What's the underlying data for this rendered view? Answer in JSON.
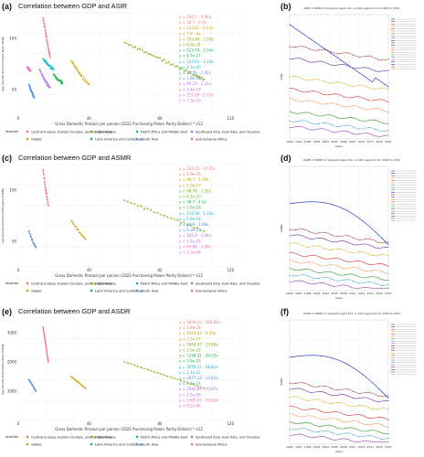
{
  "colors": {
    "c1": "#f06f6f",
    "c2": "#c9a400",
    "c3": "#7cae00",
    "c4": "#1ab34a",
    "c5": "#00b8c4",
    "c6": "#4a8fe0",
    "c7": "#b06ae8",
    "c8": "#f060c0"
  },
  "legend": {
    "title": "location",
    "items": [
      "Central Europe, Eastern Europe, and Central Asia",
      "High-income",
      "North Africa and Middle East",
      "Southeast Asia, East Asia, and Oceania",
      "Global",
      "Latin America and Caribbean",
      "South Asia",
      "Sub-Saharan Africa"
    ]
  },
  "x_axis_label": "Gross Domestic Product per person (2022 Purchasing Power Parity Dollars) * e12",
  "panels": [
    {
      "label": "(a)",
      "title": "Correlation between GDP and ASIR",
      "ylabel": "Age-Standardized Incidence Rate (ASIR)",
      "yticks": [
        "100",
        "50"
      ],
      "xticks": [
        "0",
        "40",
        "80",
        "120"
      ],
      "equations": [
        "y = 350.7 - 3.06x",
        "y = 16.7 - 0.7x",
        "y = 113.81 - 6.23x",
        "y = 7.8 - 0x",
        "y = 103.49 - 3.59x",
        "y = 8.9e-24",
        "y = 123.79 - 2.54x",
        "y = 9.7e-27",
        "y = 123.42 - 1.14x",
        "y = 2.1e-45",
        "y = 75.59 - 1.32x",
        "y = 1.6e-39",
        "y = 93.23 - 1.21x",
        "y = 3.4e-19",
        "y = 113.09 - 5.37x",
        "y = 7.3e-16"
      ]
    },
    {
      "label": "(c)",
      "title": "Correlation between GDP and ASMR",
      "ylabel": "Age-Standardized Mortality Rate (ASMR)",
      "yticks": [
        "100",
        "50"
      ],
      "xticks": [
        "0",
        "40",
        "80",
        "120"
      ],
      "equations": [
        "y = 233.15 - 17.35x",
        "y = 2.9e-25",
        "y = 98.7 - 4.39x",
        "y = 5.3e-27",
        "y = 98.76 - 1.55x",
        "y = 8.2e-20",
        "y = 98.7 - 4.5x",
        "y = 2.5e-18",
        "y = 110.56 - 1.25x",
        "y = 5.6e-18",
        "y = 94.9 - 2.08x",
        "y = 6.3e-23",
        "y = 101.9 - 1.44x",
        "y = 5.1e-21",
        "y = 67.04 - 1.28x",
        "y = 3.3e-08"
      ]
    },
    {
      "label": "(e)",
      "title": "Correlation between GDP and ASDR",
      "ylabel": "Age-Standardized DALYs Rate (ASDR)",
      "yticks": [
        "3000",
        "2000",
        "1000"
      ],
      "xticks": [
        "0",
        "40",
        "80",
        "120"
      ],
      "equations": [
        "y = 5659.23 - 262.61x",
        "y = 2.6e-29",
        "y = 1944.82 - 8.03x",
        "y = 1.3e-27",
        "y = 1604.07 - 33.98x",
        "y = 1.0e-23",
        "y = 1248.31 - 34.22x",
        "y = 3.9e-20",
        "y = 2659.11 - 58.41x",
        "y = 1.4e-22",
        "y = 2677.23 - 14.65x",
        "y = 1.5e-21",
        "y = 2040.85 - 20.87x",
        "y = 1.2e-08",
        "y = 1305.57 - 10.13x",
        "y = 6.2e-09"
      ]
    }
  ],
  "right_panels": [
    {
      "label": "(b)",
      "title": "ASIR of GERD of Subjects Aged 20+ in 204 regions from 1990 to 2021",
      "ylabel": "ASIR",
      "xlabel": "Years"
    },
    {
      "label": "(d)",
      "title": "ASMR of GERD of Subjects Aged 20+ in 204 regions from 1990 to 2021",
      "ylabel": "ASMR",
      "xlabel": "Years"
    },
    {
      "label": "(f)",
      "title": "ASDR of GERD of Subjects Aged 20+ in 204 regions from 1990 to 2021",
      "ylabel": "ASDR",
      "xlabel": "Years"
    }
  ],
  "year_ticks": [
    "1990",
    "1993",
    "1996",
    "1999",
    "2002",
    "2005",
    "2008",
    "2011",
    "2014",
    "2017",
    "2020",
    "2021"
  ],
  "chart_data": [
    {
      "type": "scatter",
      "title": "Correlation between GDP and ASIR",
      "xlabel": "Gross Domestic Product per person (2022 Purchasing Power Parity Dollars) * e12",
      "ylabel": "Age-Standardized Incidence Rate (ASIR)",
      "xlim": [
        0,
        125
      ],
      "ylim": [
        25,
        125
      ],
      "series": [
        {
          "name": "Central Europe, Eastern Europe, and Central Asia",
          "x": [
            14,
            15,
            16,
            17,
            18
          ],
          "y": [
            120,
            110,
            100,
            90,
            82
          ]
        },
        {
          "name": "High-income",
          "x": [
            60,
            70,
            80,
            90,
            100,
            105
          ],
          "y": [
            96,
            88,
            80,
            72,
            64,
            60
          ]
        },
        {
          "name": "North Africa and Middle East",
          "x": [
            14,
            16,
            18,
            20
          ],
          "y": [
            80,
            76,
            72,
            70
          ]
        },
        {
          "name": "Southeast Asia, East Asia, and Oceania",
          "x": [
            12,
            14,
            16,
            18
          ],
          "y": [
            70,
            62,
            56,
            52
          ]
        },
        {
          "name": "Global",
          "x": [
            30,
            33,
            36,
            40
          ],
          "y": [
            78,
            70,
            62,
            55
          ]
        },
        {
          "name": "Latin America and Caribbean",
          "x": [
            20,
            22,
            24,
            25
          ],
          "y": [
            65,
            60,
            58,
            56
          ]
        },
        {
          "name": "South Asia",
          "x": [
            6,
            7,
            8,
            9
          ],
          "y": [
            55,
            50,
            46,
            42
          ]
        },
        {
          "name": "Sub-Saharan Africa",
          "x": [
            5,
            6,
            7
          ],
          "y": [
            72,
            70,
            68
          ]
        }
      ]
    },
    {
      "type": "scatter",
      "title": "Correlation between GDP and ASMR",
      "xlabel": "Gross Domestic Product per person (2022 Purchasing Power Parity Dollars) * e12",
      "ylabel": "Age-Standardized Mortality Rate (ASMR)",
      "xlim": [
        0,
        125
      ],
      "ylim": [
        25,
        125
      ],
      "series": [
        {
          "name": "Central Europe, Eastern Europe, and Central Asia",
          "x": [
            14,
            15,
            16,
            17
          ],
          "y": [
            120,
            105,
            95,
            85
          ]
        },
        {
          "name": "High-income",
          "x": [
            60,
            75,
            90,
            105
          ],
          "y": [
            90,
            80,
            70,
            60
          ]
        },
        {
          "name": "Global",
          "x": [
            30,
            34,
            38
          ],
          "y": [
            70,
            60,
            52
          ]
        },
        {
          "name": "South Asia",
          "x": [
            6,
            8,
            10
          ],
          "y": [
            60,
            50,
            44
          ]
        }
      ]
    },
    {
      "type": "scatter",
      "title": "Correlation between GDP and ASDR",
      "xlabel": "Gross Domestic Product per person (2022 Purchasing Power Parity Dollars) * e12",
      "ylabel": "Age-Standardized DALYs Rate (ASDR)",
      "xlim": [
        0,
        125
      ],
      "ylim": [
        0,
        3500
      ],
      "series": [
        {
          "name": "Central Europe, Eastern Europe, and Central Asia",
          "x": [
            14,
            15,
            16,
            17
          ],
          "y": [
            3200,
            2800,
            2400,
            2000
          ]
        },
        {
          "name": "High-income",
          "x": [
            60,
            75,
            90,
            105
          ],
          "y": [
            2000,
            1700,
            1400,
            1100
          ]
        },
        {
          "name": "Global",
          "x": [
            30,
            34,
            38
          ],
          "y": [
            1500,
            1300,
            1100
          ]
        },
        {
          "name": "South Asia",
          "x": [
            6,
            8,
            10
          ],
          "y": [
            1400,
            1200,
            1000
          ]
        }
      ]
    }
  ]
}
